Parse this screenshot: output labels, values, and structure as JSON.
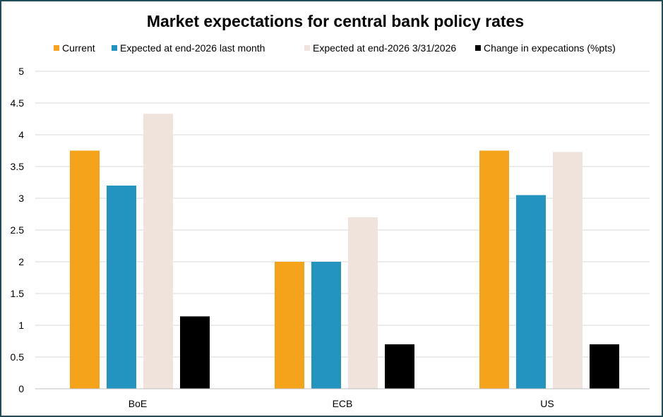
{
  "chart_data": {
    "type": "bar",
    "title": "Market expectations for central bank policy rates",
    "xlabel": "",
    "ylabel": "",
    "categories": [
      "BoE",
      "ECB",
      "US"
    ],
    "ylim": [
      0,
      5
    ],
    "yticks": [
      "0",
      "0.5",
      "1",
      "1.5",
      "2",
      "2.5",
      "3",
      "3.5",
      "4",
      "4.5",
      "5"
    ],
    "grid": true,
    "legend_position": "top",
    "series": [
      {
        "name": "Current",
        "color": "#F5A31A",
        "values": [
          3.75,
          2.0,
          3.75
        ]
      },
      {
        "name": "Expected at end-2026 last month",
        "color": "#2394C0",
        "values": [
          3.2,
          2.0,
          3.05
        ]
      },
      {
        "name": "Expected at end-2026 3/31/2026",
        "color": "#EFE3DC",
        "values": [
          4.33,
          2.7,
          3.73
        ]
      },
      {
        "name": "Change in expecations (%pts)",
        "color": "#000000",
        "values": [
          1.14,
          0.7,
          0.7
        ]
      }
    ]
  }
}
